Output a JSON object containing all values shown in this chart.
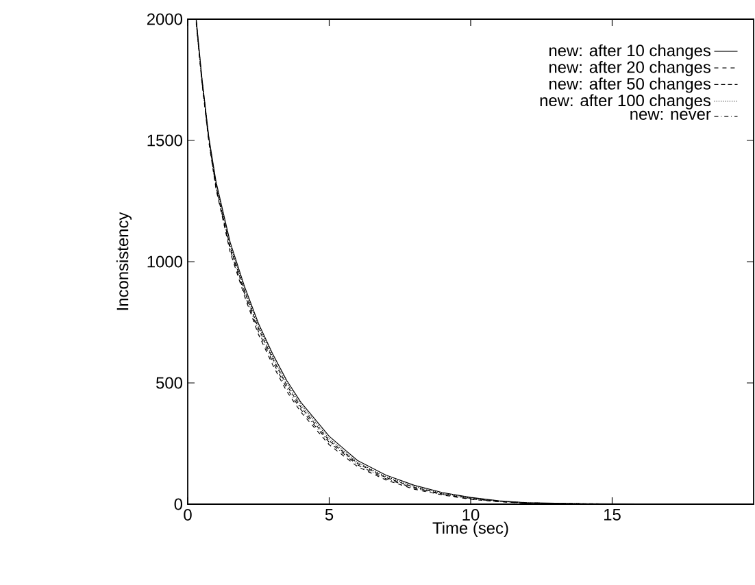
{
  "chart_data": {
    "type": "line",
    "xlabel": "Time (sec)",
    "ylabel": "Inconsistency",
    "x": [
      0.3,
      0.5,
      0.75,
      1,
      1.5,
      2,
      2.5,
      3,
      3.5,
      4,
      5,
      6,
      7,
      8,
      9,
      10,
      11,
      12,
      14,
      16,
      18,
      20
    ],
    "series": [
      {
        "name": "new: after 10 changes",
        "color": "#000000",
        "line_style": "solid",
        "values": [
          2000,
          1760,
          1510,
          1330,
          1080,
          900,
          745,
          620,
          510,
          420,
          280,
          180,
          120,
          78,
          48,
          28,
          14,
          6,
          2,
          1,
          0,
          0
        ]
      },
      {
        "name": "new: after 20 changes",
        "color": "#000000",
        "line_style": "dashed",
        "values": [
          1990,
          1740,
          1490,
          1300,
          1040,
          860,
          700,
          575,
          465,
          380,
          245,
          155,
          100,
          62,
          38,
          20,
          10,
          4,
          1,
          0,
          0,
          null
        ]
      },
      {
        "name": "new: after 50 changes",
        "color": "#000000",
        "line_style": "densely dashed",
        "values": [
          1995,
          1750,
          1500,
          1310,
          1060,
          880,
          725,
          600,
          490,
          400,
          262,
          168,
          110,
          70,
          42,
          24,
          12,
          5,
          2,
          0,
          null,
          null
        ]
      },
      {
        "name": "new: after 100 changes",
        "color": "#000000",
        "line_style": "dotted",
        "values": [
          1980,
          1755,
          1505,
          1320,
          1070,
          890,
          735,
          610,
          500,
          410,
          270,
          172,
          114,
          73,
          45,
          26,
          13,
          5,
          2,
          null,
          null,
          null
        ]
      },
      {
        "name": "new: never",
        "color": "#000000",
        "line_style": "dashdot",
        "values": [
          1985,
          1745,
          1495,
          1305,
          1050,
          870,
          712,
          588,
          478,
          390,
          255,
          162,
          105,
          66,
          40,
          22,
          11,
          4,
          0,
          1,
          0,
          0
        ]
      }
    ],
    "xlim": [
      0,
      20
    ],
    "ylim": [
      0,
      2000
    ],
    "xticks": [
      0,
      5,
      10,
      15
    ],
    "yticks": [
      0,
      500,
      1000,
      1500,
      2000
    ],
    "grid": false,
    "legend": "top right",
    "marker": "none"
  }
}
